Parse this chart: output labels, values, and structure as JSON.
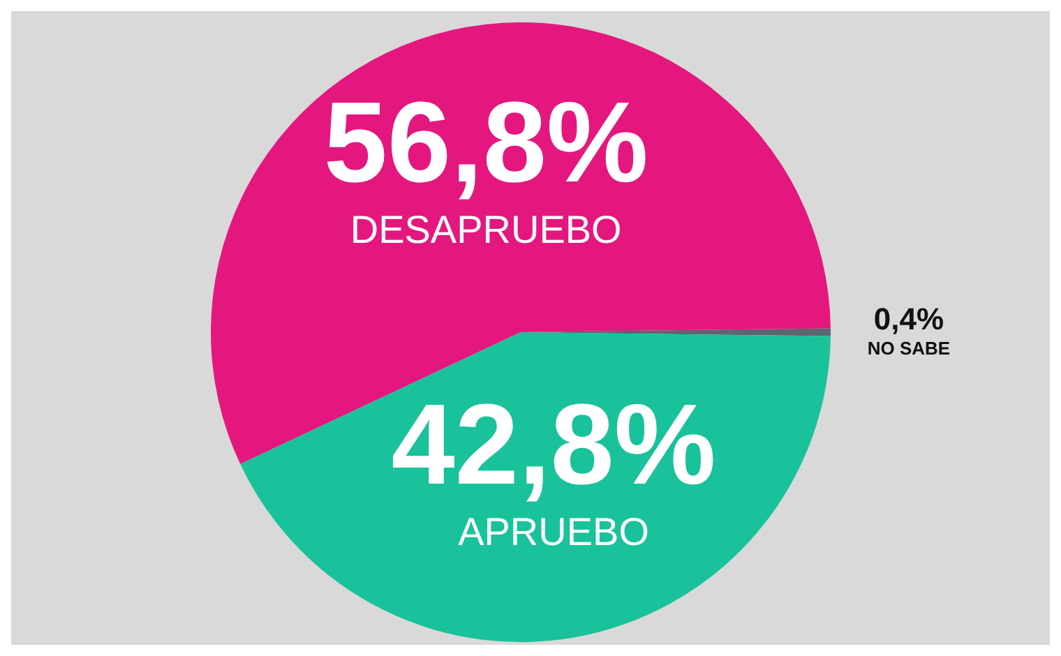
{
  "chart_data": {
    "type": "pie",
    "categories": [
      "NO SABE",
      "DESAPRUEBO",
      "APRUEBO"
    ],
    "values": [
      0.4,
      56.8,
      42.8
    ],
    "value_labels": [
      "0,4%",
      "56,8%",
      "42,8%"
    ],
    "colors": [
      "#5b6670",
      "#e4177f",
      "#19c29b"
    ],
    "legend": false
  }
}
